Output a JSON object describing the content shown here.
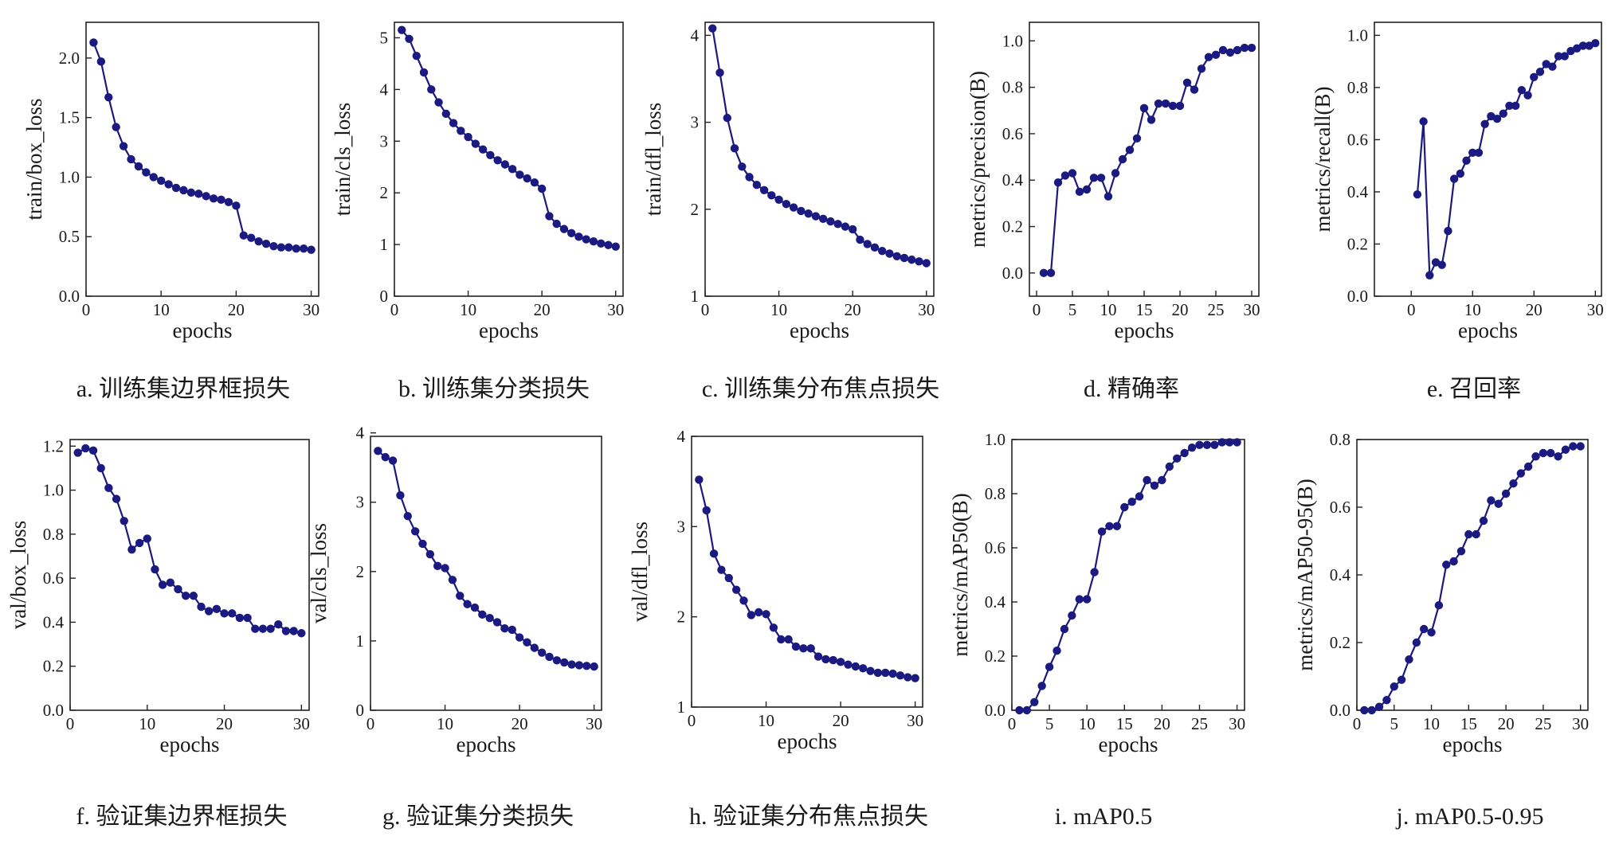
{
  "colors": {
    "series": "#1a1a80",
    "axis": "#222222",
    "text": "#1a1a1a"
  },
  "chart_data": [
    {
      "type": "line",
      "caption": "a. 训练集边界框损失",
      "xlabel": "epochs",
      "ylabel": "train/box_loss",
      "xlim": [
        0,
        31
      ],
      "ylim": [
        0,
        2.3
      ],
      "xticks": [
        "0",
        "10",
        "20",
        "30"
      ],
      "yticks": [
        "0.0",
        "0.5",
        "1.0",
        "1.5",
        "2.0"
      ],
      "grid": false,
      "x": [
        1,
        2,
        3,
        4,
        5,
        6,
        7,
        8,
        9,
        10,
        11,
        12,
        13,
        14,
        15,
        16,
        17,
        18,
        19,
        20,
        21,
        22,
        23,
        24,
        25,
        26,
        27,
        28,
        29,
        30
      ],
      "y": [
        2.13,
        1.97,
        1.67,
        1.42,
        1.26,
        1.15,
        1.09,
        1.04,
        1.0,
        0.97,
        0.94,
        0.91,
        0.89,
        0.87,
        0.86,
        0.84,
        0.82,
        0.81,
        0.79,
        0.76,
        0.51,
        0.49,
        0.46,
        0.44,
        0.42,
        0.41,
        0.41,
        0.4,
        0.4,
        0.39
      ]
    },
    {
      "type": "line",
      "caption": "b. 训练集分类损失",
      "xlabel": "epochs",
      "ylabel": "train/cls_loss",
      "xlim": [
        0,
        31
      ],
      "ylim": [
        0,
        5.3
      ],
      "xticks": [
        "0",
        "10",
        "20",
        "30"
      ],
      "yticks": [
        "0",
        "1",
        "2",
        "3",
        "4",
        "5"
      ],
      "grid": false,
      "x": [
        1,
        2,
        3,
        4,
        5,
        6,
        7,
        8,
        9,
        10,
        11,
        12,
        13,
        14,
        15,
        16,
        17,
        18,
        19,
        20,
        21,
        22,
        23,
        24,
        25,
        26,
        27,
        28,
        29,
        30
      ],
      "y": [
        5.15,
        4.98,
        4.65,
        4.33,
        4.0,
        3.75,
        3.53,
        3.35,
        3.2,
        3.08,
        2.95,
        2.84,
        2.73,
        2.63,
        2.55,
        2.46,
        2.35,
        2.28,
        2.2,
        2.08,
        1.55,
        1.4,
        1.3,
        1.22,
        1.15,
        1.1,
        1.06,
        1.02,
        0.99,
        0.96
      ]
    },
    {
      "type": "line",
      "caption": "c. 训练集分布焦点损失",
      "xlabel": "epochs",
      "ylabel": "train/dfl_loss",
      "xlim": [
        0,
        31
      ],
      "ylim": [
        1,
        4.15
      ],
      "xticks": [
        "0",
        "10",
        "20",
        "30"
      ],
      "yticks": [
        "1",
        "2",
        "3",
        "4"
      ],
      "grid": false,
      "x": [
        1,
        2,
        3,
        4,
        5,
        6,
        7,
        8,
        9,
        10,
        11,
        12,
        13,
        14,
        15,
        16,
        17,
        18,
        19,
        20,
        21,
        22,
        23,
        24,
        25,
        26,
        27,
        28,
        29,
        30
      ],
      "y": [
        4.08,
        3.57,
        3.05,
        2.7,
        2.49,
        2.37,
        2.28,
        2.22,
        2.16,
        2.11,
        2.06,
        2.02,
        1.98,
        1.95,
        1.92,
        1.89,
        1.86,
        1.83,
        1.8,
        1.77,
        1.65,
        1.6,
        1.56,
        1.52,
        1.49,
        1.46,
        1.44,
        1.42,
        1.4,
        1.38
      ]
    },
    {
      "type": "line",
      "caption": "d. 精确率",
      "xlabel": "epochs",
      "ylabel": "metrics/precision(B)",
      "xlim": [
        -1,
        31
      ],
      "ylim": [
        -0.1,
        1.08
      ],
      "xticks": [
        "0",
        "5",
        "10",
        "15",
        "20",
        "25",
        "30"
      ],
      "yticks": [
        "0.0",
        "0.2",
        "0.4",
        "0.6",
        "0.8",
        "1.0"
      ],
      "grid": false,
      "x": [
        1,
        2,
        3,
        4,
        5,
        6,
        7,
        8,
        9,
        10,
        11,
        12,
        13,
        14,
        15,
        16,
        17,
        18,
        19,
        20,
        21,
        22,
        23,
        24,
        25,
        26,
        27,
        28,
        29,
        30
      ],
      "y": [
        0.0,
        0.0,
        0.39,
        0.42,
        0.43,
        0.35,
        0.36,
        0.41,
        0.41,
        0.33,
        0.43,
        0.49,
        0.53,
        0.58,
        0.71,
        0.66,
        0.73,
        0.73,
        0.72,
        0.72,
        0.82,
        0.79,
        0.88,
        0.93,
        0.94,
        0.96,
        0.95,
        0.96,
        0.97,
        0.97
      ]
    },
    {
      "type": "line",
      "caption": "e. 召回率",
      "xlabel": "epochs",
      "ylabel": "metrics/recall(B)",
      "xlim": [
        -6,
        31
      ],
      "ylim": [
        0,
        1.05
      ],
      "xticks": [
        "0",
        "10",
        "20",
        "30"
      ],
      "yticks": [
        "0.0",
        "0.2",
        "0.4",
        "0.6",
        "0.8",
        "1.0"
      ],
      "grid": false,
      "x": [
        1,
        2,
        3,
        4,
        5,
        6,
        7,
        8,
        9,
        10,
        11,
        12,
        13,
        14,
        15,
        16,
        17,
        18,
        19,
        20,
        21,
        22,
        23,
        24,
        25,
        26,
        27,
        28,
        29,
        30
      ],
      "y": [
        0.39,
        0.67,
        0.08,
        0.13,
        0.12,
        0.25,
        0.45,
        0.47,
        0.52,
        0.55,
        0.55,
        0.66,
        0.69,
        0.68,
        0.7,
        0.73,
        0.73,
        0.79,
        0.77,
        0.84,
        0.86,
        0.89,
        0.88,
        0.92,
        0.92,
        0.94,
        0.95,
        0.96,
        0.96,
        0.97
      ]
    },
    {
      "type": "line",
      "caption": "f. 验证集边界框损失",
      "xlabel": "epochs",
      "ylabel": "val/box_loss",
      "xlim": [
        0,
        31
      ],
      "ylim": [
        0,
        1.23
      ],
      "xticks": [
        "0",
        "10",
        "20",
        "30"
      ],
      "yticks": [
        "0.0",
        "0.2",
        "0.4",
        "0.6",
        "0.8",
        "1.0",
        "1.2"
      ],
      "grid": false,
      "x": [
        1,
        2,
        3,
        4,
        5,
        6,
        7,
        8,
        9,
        10,
        11,
        12,
        13,
        14,
        15,
        16,
        17,
        18,
        19,
        20,
        21,
        22,
        23,
        24,
        25,
        26,
        27,
        28,
        29,
        30
      ],
      "y": [
        1.17,
        1.19,
        1.18,
        1.1,
        1.01,
        0.96,
        0.86,
        0.73,
        0.76,
        0.78,
        0.64,
        0.57,
        0.58,
        0.55,
        0.52,
        0.52,
        0.47,
        0.45,
        0.46,
        0.44,
        0.44,
        0.42,
        0.42,
        0.37,
        0.37,
        0.37,
        0.39,
        0.36,
        0.36,
        0.35
      ]
    },
    {
      "type": "line",
      "caption": "g. 验证集分类损失",
      "xlabel": "epochs",
      "ylabel": "val/cls_loss",
      "xlim": [
        0,
        31
      ],
      "ylim": [
        0,
        3.95
      ],
      "xticks": [
        "0",
        "10",
        "20",
        "30"
      ],
      "yticks": [
        "0",
        "1",
        "2",
        "3",
        "4"
      ],
      "grid": false,
      "x": [
        1,
        2,
        3,
        4,
        5,
        6,
        7,
        8,
        9,
        10,
        11,
        12,
        13,
        14,
        15,
        16,
        17,
        18,
        19,
        20,
        21,
        22,
        23,
        24,
        25,
        26,
        27,
        28,
        29,
        30
      ],
      "y": [
        3.74,
        3.65,
        3.6,
        3.1,
        2.8,
        2.58,
        2.4,
        2.25,
        2.08,
        2.05,
        1.88,
        1.65,
        1.53,
        1.48,
        1.38,
        1.33,
        1.27,
        1.18,
        1.16,
        1.05,
        0.98,
        0.9,
        0.83,
        0.77,
        0.72,
        0.69,
        0.66,
        0.65,
        0.64,
        0.63
      ]
    },
    {
      "type": "line",
      "caption": "h. 验证集分布焦点损失",
      "xlabel": "epochs",
      "ylabel": "val/dfl_loss",
      "xlim": [
        0,
        31
      ],
      "ylim": [
        1,
        4
      ],
      "xticks": [
        "0",
        "10",
        "20",
        "30"
      ],
      "yticks": [
        "1",
        "2",
        "3",
        "4"
      ],
      "grid": false,
      "x": [
        1,
        2,
        3,
        4,
        5,
        6,
        7,
        8,
        9,
        10,
        11,
        12,
        13,
        14,
        15,
        16,
        17,
        18,
        19,
        20,
        21,
        22,
        23,
        24,
        25,
        26,
        27,
        28,
        29,
        30
      ],
      "y": [
        3.52,
        3.18,
        2.7,
        2.52,
        2.43,
        2.3,
        2.18,
        2.02,
        2.05,
        2.03,
        1.88,
        1.75,
        1.75,
        1.67,
        1.65,
        1.65,
        1.56,
        1.53,
        1.52,
        1.5,
        1.47,
        1.45,
        1.43,
        1.4,
        1.38,
        1.38,
        1.37,
        1.35,
        1.33,
        1.32
      ]
    },
    {
      "type": "line",
      "caption": "i. mAP0.5",
      "xlabel": "epochs",
      "ylabel": "metrics/mAP50(B)",
      "xlim": [
        0,
        31
      ],
      "ylim": [
        0,
        1.0
      ],
      "xticks": [
        "0",
        "5",
        "10",
        "15",
        "20",
        "25",
        "30"
      ],
      "yticks": [
        "0.0",
        "0.2",
        "0.4",
        "0.6",
        "0.8",
        "1.0"
      ],
      "grid": false,
      "x": [
        1,
        2,
        3,
        4,
        5,
        6,
        7,
        8,
        9,
        10,
        11,
        12,
        13,
        14,
        15,
        16,
        17,
        18,
        19,
        20,
        21,
        22,
        23,
        24,
        25,
        26,
        27,
        28,
        29,
        30
      ],
      "y": [
        0.0,
        0.0,
        0.03,
        0.09,
        0.16,
        0.22,
        0.3,
        0.35,
        0.41,
        0.41,
        0.51,
        0.66,
        0.68,
        0.68,
        0.75,
        0.77,
        0.79,
        0.85,
        0.83,
        0.85,
        0.9,
        0.93,
        0.95,
        0.97,
        0.98,
        0.98,
        0.98,
        0.99,
        0.99,
        0.99
      ]
    },
    {
      "type": "line",
      "caption": "j. mAP0.5-0.95",
      "xlabel": "epochs",
      "ylabel": "metrics/mAP50-95(B)",
      "xlim": [
        0,
        31
      ],
      "ylim": [
        0,
        0.8
      ],
      "xticks": [
        "0",
        "5",
        "10",
        "15",
        "20",
        "25",
        "30"
      ],
      "yticks": [
        "0.0",
        "0.2",
        "0.4",
        "0.6",
        "0.8"
      ],
      "grid": false,
      "x": [
        1,
        2,
        3,
        4,
        5,
        6,
        7,
        8,
        9,
        10,
        11,
        12,
        13,
        14,
        15,
        16,
        17,
        18,
        19,
        20,
        21,
        22,
        23,
        24,
        25,
        26,
        27,
        28,
        29,
        30
      ],
      "y": [
        0.0,
        0.0,
        0.01,
        0.03,
        0.07,
        0.09,
        0.15,
        0.2,
        0.24,
        0.23,
        0.31,
        0.43,
        0.44,
        0.47,
        0.52,
        0.52,
        0.56,
        0.62,
        0.61,
        0.64,
        0.67,
        0.7,
        0.72,
        0.75,
        0.76,
        0.76,
        0.75,
        0.77,
        0.78,
        0.78
      ]
    }
  ]
}
